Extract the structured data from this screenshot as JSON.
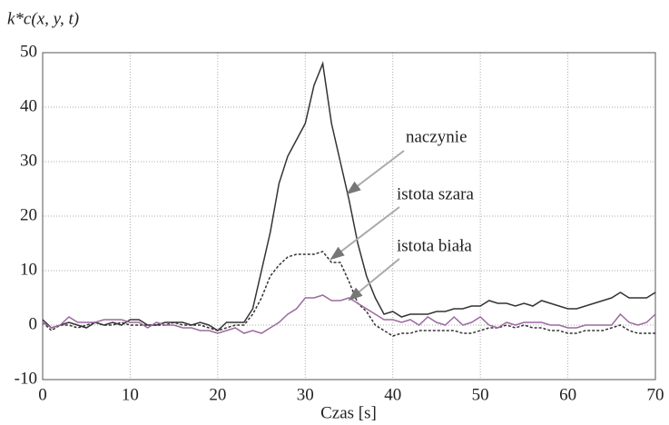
{
  "chart_data": {
    "type": "line",
    "y_label": "k*c(x, y, t)",
    "x_label": "Czas [s]",
    "x": [
      0,
      1,
      2,
      3,
      4,
      5,
      6,
      7,
      8,
      9,
      10,
      11,
      12,
      13,
      14,
      15,
      16,
      17,
      18,
      19,
      20,
      21,
      22,
      23,
      24,
      25,
      26,
      27,
      28,
      29,
      30,
      31,
      32,
      33,
      34,
      35,
      36,
      37,
      38,
      39,
      40,
      41,
      42,
      43,
      44,
      45,
      46,
      47,
      48,
      49,
      50,
      51,
      52,
      53,
      54,
      55,
      56,
      57,
      58,
      59,
      60,
      61,
      62,
      63,
      64,
      65,
      66,
      67,
      68,
      69,
      70
    ],
    "series": [
      {
        "name": "naczynie",
        "color": "#333333",
        "style": "solid",
        "values": [
          1,
          -0.5,
          0,
          0.5,
          0,
          -0.5,
          0.5,
          0,
          0.5,
          0,
          1,
          1,
          0,
          0,
          0.5,
          0.5,
          0.5,
          0,
          0.5,
          0,
          -1,
          0.5,
          0.5,
          0.5,
          3,
          10,
          17,
          26,
          31,
          34,
          37,
          44,
          48,
          37,
          30,
          23,
          15,
          9,
          5,
          2,
          2.5,
          1.5,
          2,
          2,
          2,
          2.5,
          2.5,
          3,
          3,
          3.5,
          3.5,
          4.5,
          4,
          4,
          3.5,
          4,
          3.5,
          4.5,
          4,
          3.5,
          3,
          3,
          3.5,
          4,
          4.5,
          5,
          6,
          5,
          5,
          5,
          6
        ]
      },
      {
        "name": "istota szara",
        "color": "#333333",
        "style": "dashed",
        "values": [
          0.5,
          -1,
          0,
          0,
          -0.5,
          0,
          0.5,
          0,
          0,
          0.5,
          0,
          0,
          0,
          0,
          0,
          0.5,
          0,
          0,
          0,
          -0.5,
          -1,
          -0.5,
          0,
          0,
          2,
          5,
          9,
          11,
          12.5,
          13,
          13,
          13,
          13.5,
          11.5,
          11.5,
          8,
          4,
          2.5,
          0,
          -1,
          -2,
          -1.5,
          -1.5,
          -1,
          -1,
          -1,
          -1,
          -1,
          -1.5,
          -1.5,
          -1,
          -0.5,
          -0.5,
          0,
          -0.5,
          0,
          -0.5,
          -0.5,
          -1,
          -1,
          -1.5,
          -1.5,
          -1,
          -1,
          -1,
          -0.5,
          0,
          -1,
          -1.5,
          -1.5,
          -1.5
        ]
      },
      {
        "name": "istota biała",
        "color": "#9b6aa0",
        "style": "solid",
        "values": [
          0.5,
          -0.5,
          0,
          1.5,
          0.5,
          0.5,
          0.5,
          1,
          1,
          1,
          0.5,
          0.5,
          -0.5,
          0.5,
          0,
          0,
          -0.5,
          -0.5,
          -1,
          -1,
          -1.5,
          -1,
          -0.5,
          -1.5,
          -1,
          -1.5,
          -0.5,
          0.5,
          2,
          3,
          5,
          5,
          5.5,
          4.5,
          4.5,
          5,
          4,
          3,
          2,
          1,
          1,
          0.5,
          1,
          0,
          1.5,
          0.5,
          0,
          1.5,
          0,
          0.5,
          1.5,
          0,
          -0.5,
          0.5,
          0,
          0.5,
          0.5,
          0.5,
          0,
          0,
          -0.5,
          -0.5,
          0,
          0,
          0,
          0,
          2,
          0.5,
          0,
          0.5,
          2
        ]
      }
    ],
    "annotations": [
      "naczynie",
      "istota szara",
      "istota biała"
    ],
    "xlim": [
      0,
      70
    ],
    "ylim": [
      -10,
      50
    ],
    "xticks": [
      0,
      10,
      20,
      30,
      40,
      50,
      60,
      70
    ],
    "yticks": [
      -10,
      0,
      10,
      20,
      30,
      40,
      50
    ],
    "grid": true
  }
}
